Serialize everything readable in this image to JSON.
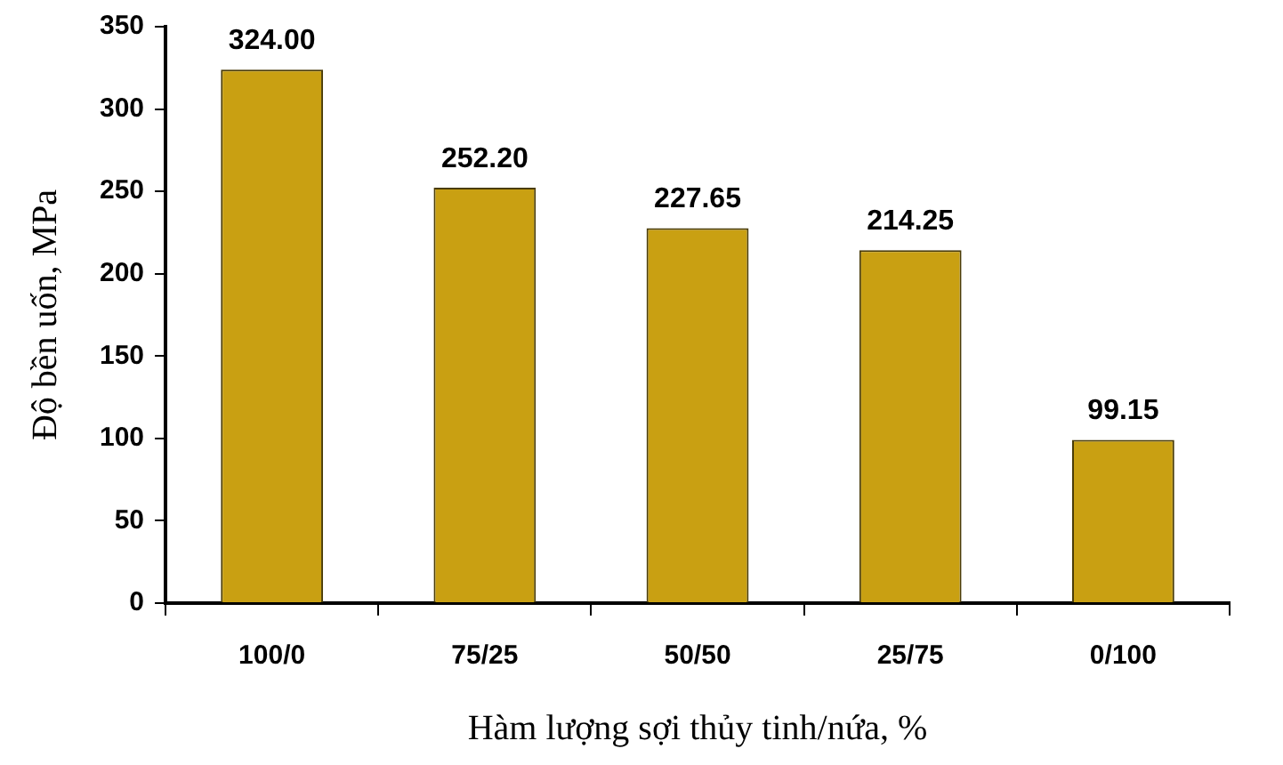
{
  "chart_data": {
    "type": "bar",
    "xlabel": "Hàm lượng sợi thủy tinh/nứa, %",
    "ylabel": "Độ bền uốn, MPa",
    "categories": [
      "100/0",
      "75/25",
      "50/50",
      "25/75",
      "0/100"
    ],
    "values": [
      324.0,
      252.2,
      227.65,
      214.25,
      99.15
    ],
    "value_labels": [
      "324.00",
      "252.20",
      "227.65",
      "214.25",
      "99.15"
    ],
    "color": "#c9a012",
    "ylim": [
      0,
      350
    ],
    "yticks": [
      0,
      50,
      100,
      150,
      200,
      250,
      300,
      350
    ],
    "grid": false,
    "legend": false
  }
}
